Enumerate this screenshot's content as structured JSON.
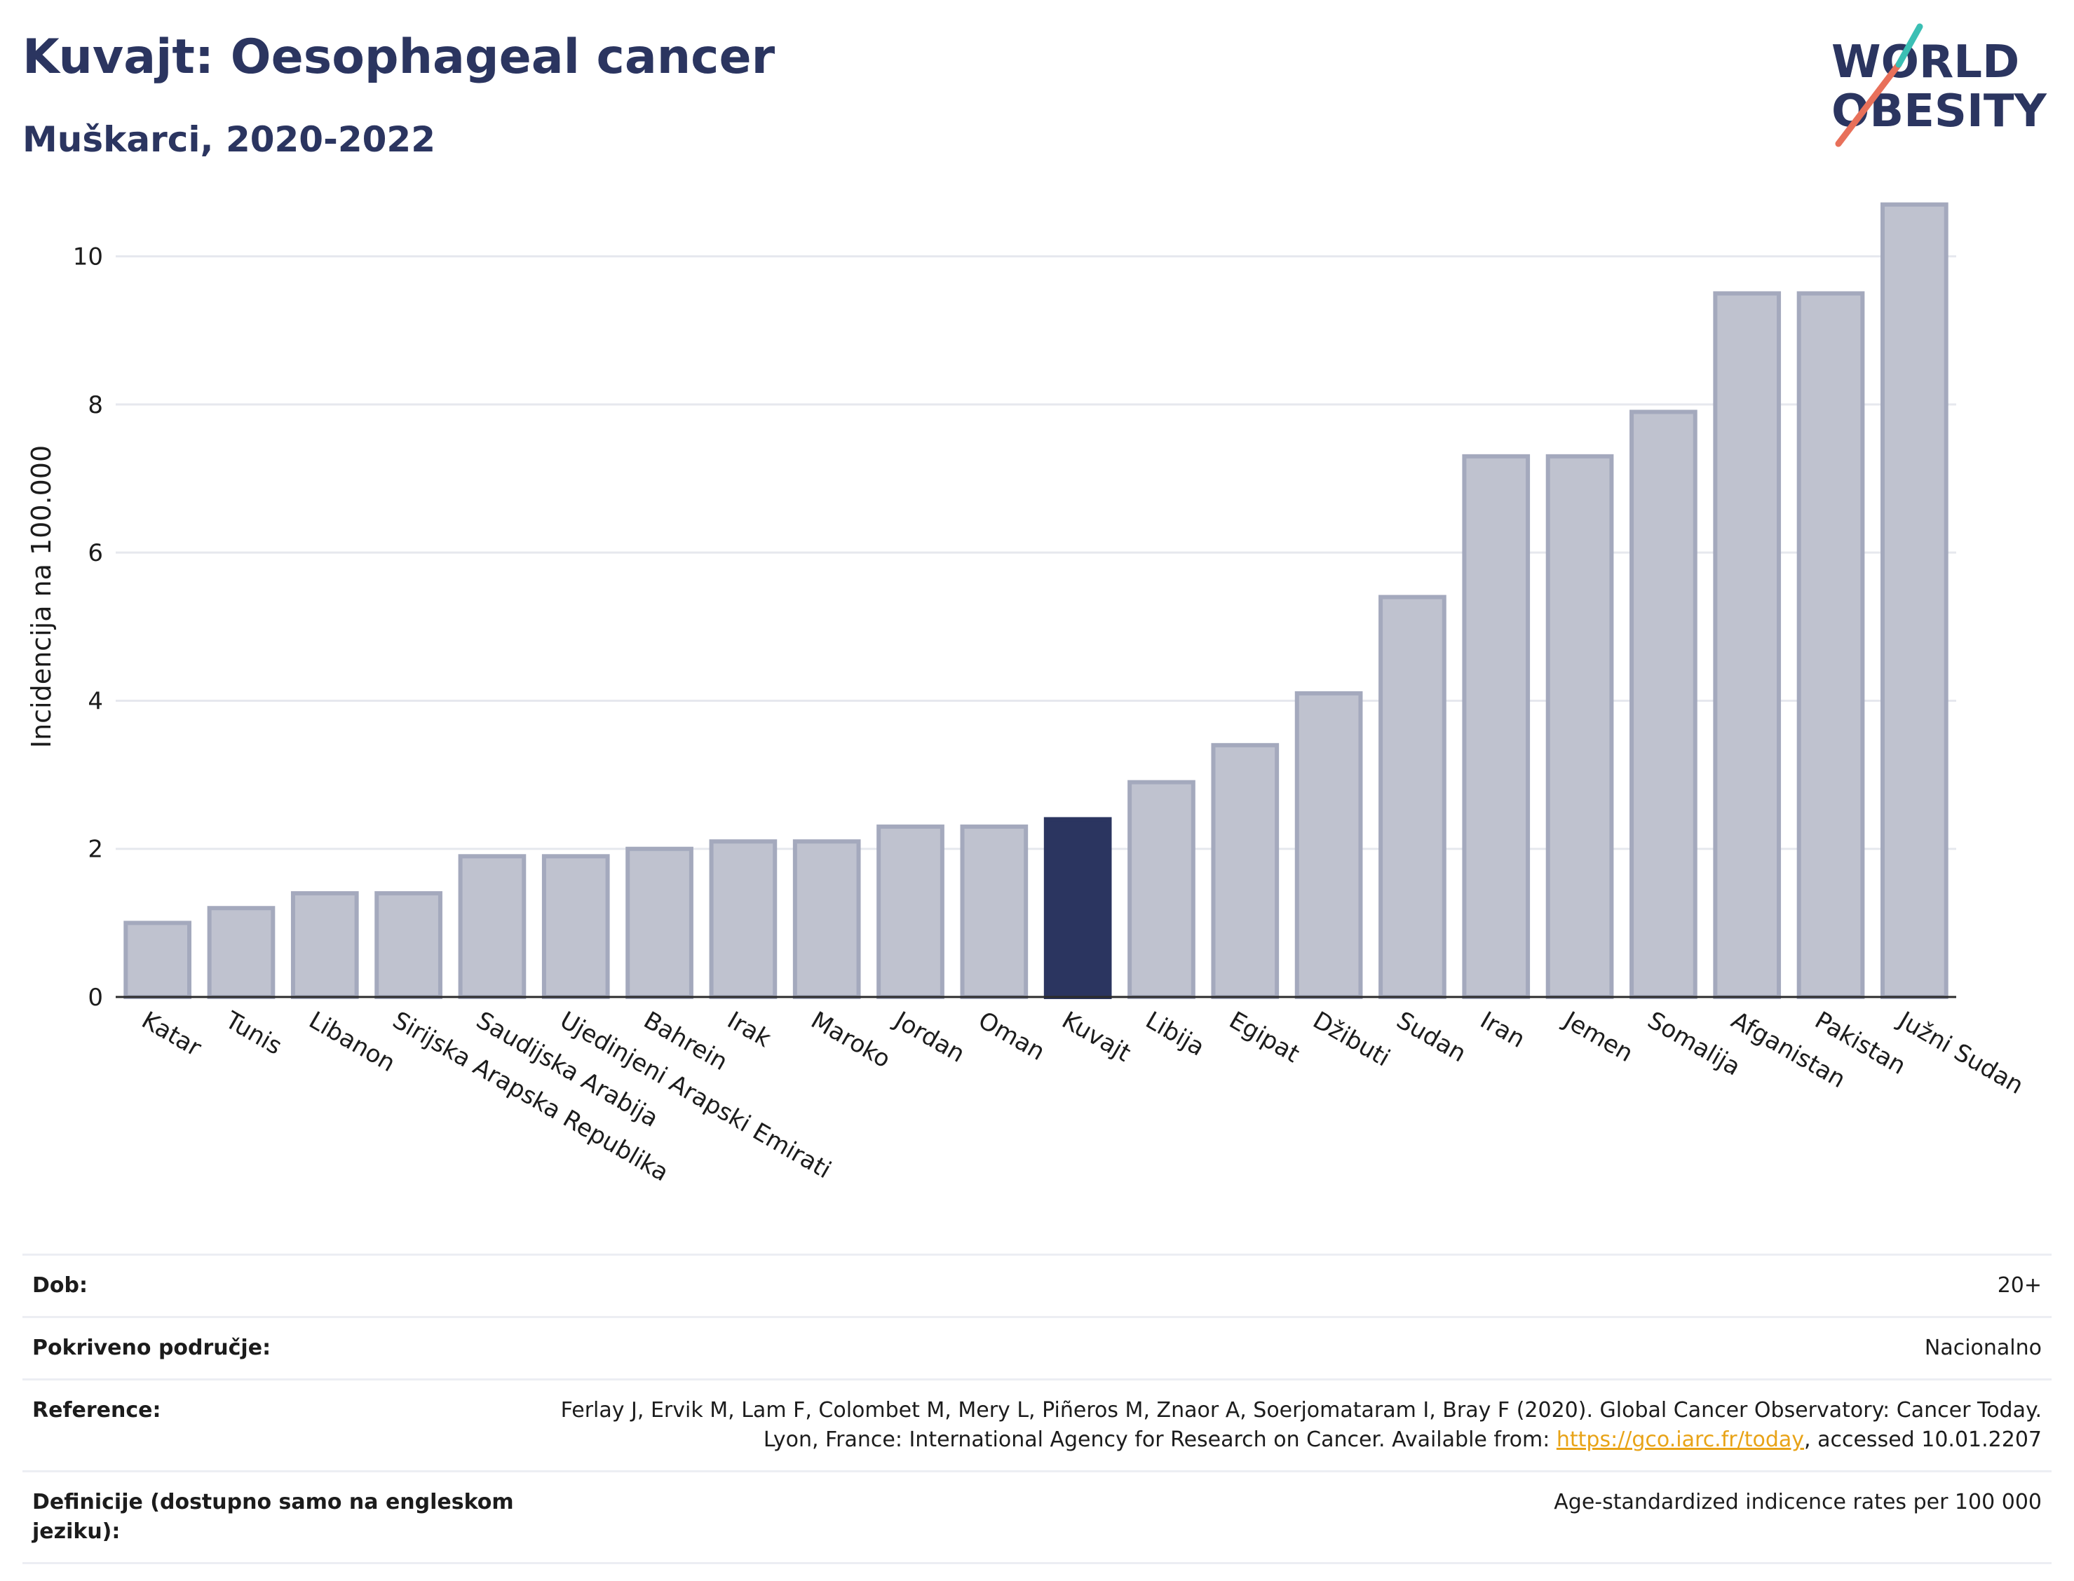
{
  "header": {
    "title": "Kuvajt: Oesophageal cancer",
    "subtitle": "Muškarci, 2020-2022"
  },
  "logo": {
    "line1": "WORLD",
    "line2": "OBESITY"
  },
  "colors": {
    "highlight": "#2b3560",
    "bar_fill": "#bfc2cf",
    "bar_stroke": "#a4a9bd",
    "title": "#2b3560",
    "link": "#e8a317"
  },
  "chart_data": {
    "type": "bar",
    "ylabel": "Incidencija na 100.000",
    "ylim": [
      0,
      11
    ],
    "yticks": [
      0,
      2,
      4,
      6,
      8,
      10
    ],
    "grid": true,
    "highlight_category": "Kuvajt",
    "categories": [
      "Katar",
      "Tunis",
      "Libanon",
      "Sirijska Arapska Republika",
      "Saudijska Arabija",
      "Ujedinjeni Arapski Emirati",
      "Bahrein",
      "Irak",
      "Maroko",
      "Jordan",
      "Oman",
      "Kuvajt",
      "Libija",
      "Egipat",
      "Džibuti",
      "Sudan",
      "Iran",
      "Jemen",
      "Somalija",
      "Afganistan",
      "Pakistan",
      "Južni Sudan"
    ],
    "values": [
      1.0,
      1.2,
      1.4,
      1.4,
      1.9,
      1.9,
      2.0,
      2.1,
      2.1,
      2.3,
      2.3,
      2.4,
      2.9,
      3.4,
      4.1,
      5.4,
      7.3,
      7.3,
      7.9,
      9.5,
      9.5,
      10.7
    ]
  },
  "info": {
    "age_label": "Dob:",
    "age_value": "20+",
    "coverage_label": "Pokriveno područje:",
    "coverage_value": "Nacionalno",
    "reference_label": "Reference:",
    "reference_text_1": "Ferlay J, Ervik M, Lam F, Colombet M, Mery L, Piñeros M, Znaor A, Soerjomataram I, Bray F (2020). Global Cancer Observatory: Cancer Today. Lyon, France: International Agency for Research on Cancer. Available from: ",
    "reference_link": "https://gco.iarc.fr/today",
    "reference_text_2": ", accessed 10.01.2207",
    "definition_label": "Definicije (dostupno samo na engleskom jeziku):",
    "definition_value": "Age-standardized indicence rates per 100 000"
  }
}
